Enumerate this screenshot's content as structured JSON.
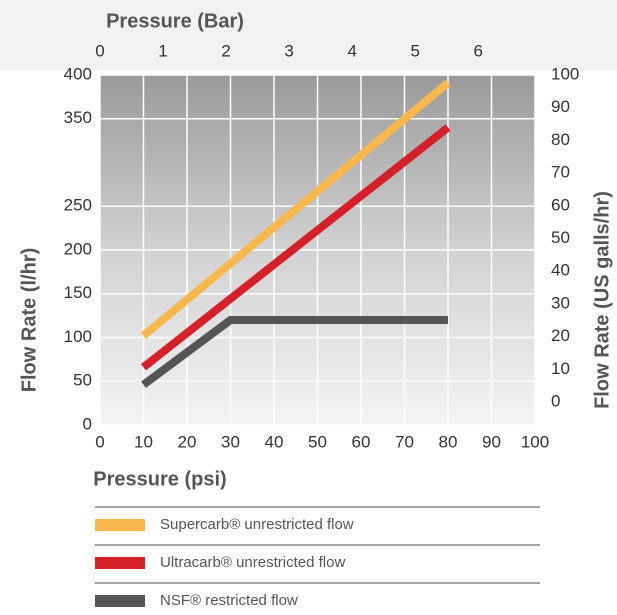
{
  "chart_data": {
    "type": "line",
    "x_title": "Pressure (psi)",
    "x2_title": "Pressure (Bar)",
    "y_title": "Flow Rate (l/hr)",
    "y2_title": "Flow Rate (US galls/hr)",
    "xlim": [
      0,
      100
    ],
    "xticks": [
      0,
      10,
      20,
      30,
      40,
      50,
      60,
      70,
      80,
      90,
      100
    ],
    "x2lim": [
      0,
      6.9
    ],
    "x2ticks": [
      0,
      1,
      2,
      3,
      4,
      5,
      6
    ],
    "ylim": [
      0,
      400
    ],
    "yticks": [
      0,
      50,
      100,
      150,
      200,
      250,
      350,
      400
    ],
    "y2lim": [
      -7,
      100
    ],
    "y2ticks": [
      0,
      10,
      20,
      30,
      40,
      50,
      60,
      70,
      80,
      90,
      100
    ],
    "grid": true,
    "series": [
      {
        "name": "Supercarb® unrestricted flow",
        "color": "#f8b84e",
        "x": [
          10,
          80
        ],
        "values": [
          102,
          391
        ]
      },
      {
        "name": "Ultracarb® unrestricted flow",
        "color": "#d52029",
        "x": [
          10,
          80
        ],
        "values": [
          66,
          340
        ]
      },
      {
        "name": "NSF® restricted flow",
        "color": "#555555",
        "x": [
          10,
          30,
          80
        ],
        "values": [
          46,
          120,
          120
        ]
      }
    ]
  }
}
